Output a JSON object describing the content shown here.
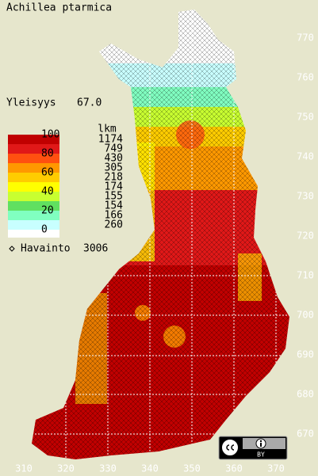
{
  "title": "Achillea ptarmica",
  "frequency": {
    "label": "Yleisyys",
    "value": "67.0"
  },
  "legend": {
    "levels": [
      "100",
      "80",
      "60",
      "40",
      "20",
      "0"
    ],
    "colors": [
      "#c00000",
      "#e01818",
      "#ff5010",
      "#ff9800",
      "#ffcc00",
      "#ffff00",
      "#c8ff30",
      "#60e060",
      "#80ffc0",
      "#c8ffff"
    ],
    "count_header": "lkm",
    "counts": [
      "1174",
      "749",
      "430",
      "305",
      "218",
      "174",
      "155",
      "154",
      "166",
      "260"
    ]
  },
  "observations": {
    "label": "Havainto",
    "value": "3006"
  },
  "x_axis": [
    "310",
    "320",
    "330",
    "340",
    "350",
    "360",
    "370"
  ],
  "y_axis": [
    "770",
    "760",
    "750",
    "740",
    "730",
    "720",
    "710",
    "700",
    "690",
    "680",
    "670"
  ],
  "license": "BY"
}
